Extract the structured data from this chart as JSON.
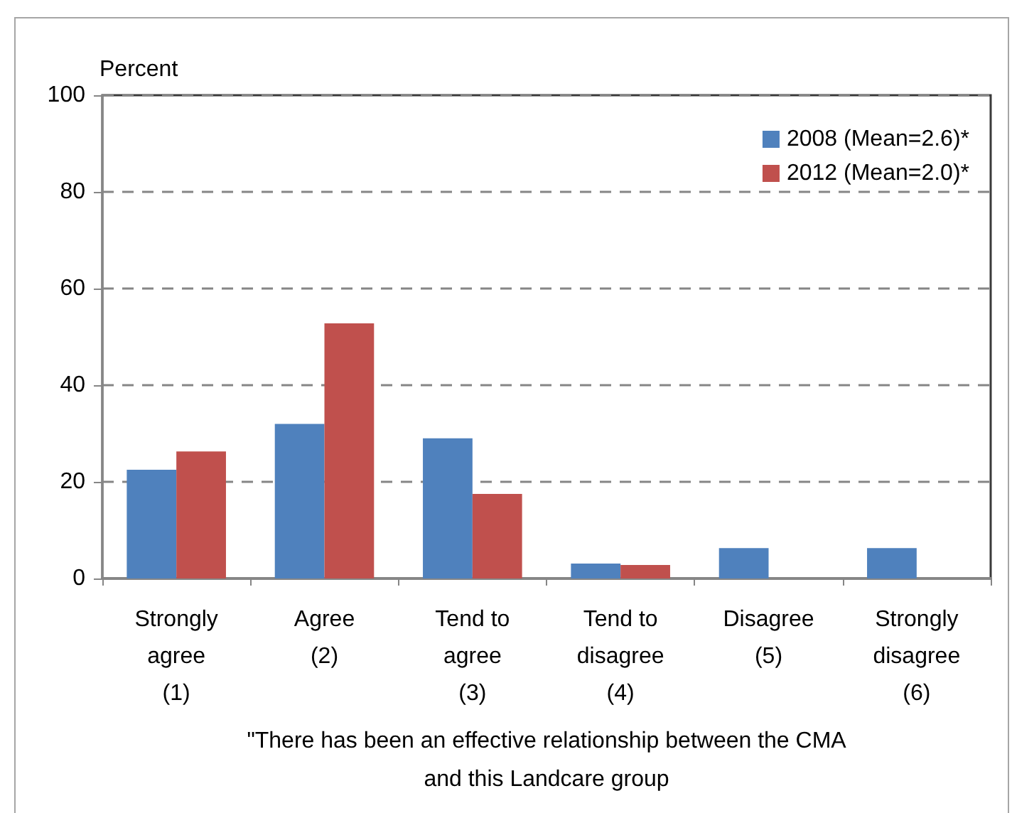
{
  "chart_data": {
    "type": "bar",
    "xlabel": "\"There has been an effective relationship between the CMA\nand this Landcare group",
    "ylabel": "Percent",
    "categories": [
      "Strongly\nagree\n(1)",
      "Agree\n(2)",
      "Tend to\nagree\n(3)",
      "Tend to\ndisagree\n(4)",
      "Disagree\n(5)",
      "Strongly\ndisagree\n(6)"
    ],
    "series": [
      {
        "name": "2008 (Mean=2.6)*",
        "color": "#4f81bd",
        "values": [
          22.5,
          32,
          29,
          3.1,
          6.3,
          6.3
        ]
      },
      {
        "name": "2012 (Mean=2.0)*",
        "color": "#c0504d",
        "values": [
          26.3,
          52.8,
          17.5,
          2.8,
          0,
          0
        ]
      }
    ],
    "ylim": [
      0,
      100
    ],
    "yticks": [
      0,
      20,
      40,
      60,
      80,
      100
    ],
    "grid": "y",
    "legend": "top right"
  }
}
